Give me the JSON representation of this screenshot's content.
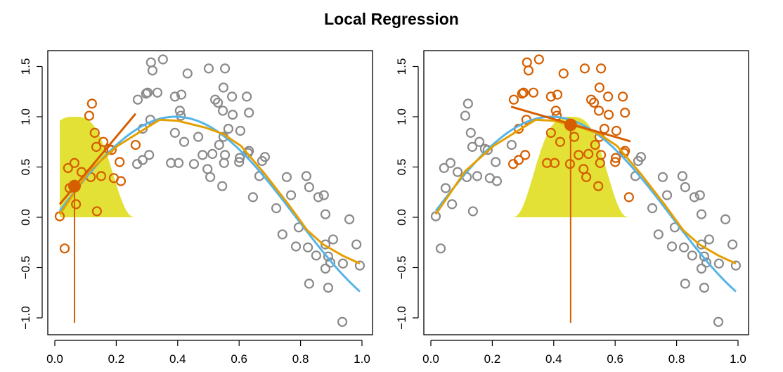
{
  "chart_data": {
    "type": "scatter",
    "title": "Local Regression",
    "xlim": [
      0,
      1
    ],
    "ylim": [
      -1.0,
      1.5
    ],
    "x_ticks": [
      "0.0",
      "0.2",
      "0.4",
      "0.6",
      "0.8",
      "1.0"
    ],
    "y_ticks": [
      "-1.0",
      "-0.5",
      "0.0",
      "0.5",
      "1.0",
      "1.5"
    ],
    "colors": {
      "points": "#8a8a8a",
      "highlight": "#D55E00",
      "true_fn": "#56B4E9",
      "loess": "#E69F00",
      "kernel": "#E3E135"
    },
    "true_function": "sin(4x)",
    "points": [
      [
        0.016,
        0.01
      ],
      [
        0.032,
        -0.31
      ],
      [
        0.121,
        1.13
      ],
      [
        0.112,
        1.01
      ],
      [
        0.13,
        0.84
      ],
      [
        0.158,
        0.75
      ],
      [
        0.135,
        0.7
      ],
      [
        0.185,
        0.67
      ],
      [
        0.176,
        0.68
      ],
      [
        0.211,
        0.55
      ],
      [
        0.064,
        0.54
      ],
      [
        0.043,
        0.49
      ],
      [
        0.087,
        0.45
      ],
      [
        0.117,
        0.4
      ],
      [
        0.151,
        0.41
      ],
      [
        0.192,
        0.39
      ],
      [
        0.215,
        0.36
      ],
      [
        0.048,
        0.29
      ],
      [
        0.069,
        0.13
      ],
      [
        0.137,
        0.06
      ],
      [
        0.263,
        0.72
      ],
      [
        0.313,
        1.54
      ],
      [
        0.318,
        1.46
      ],
      [
        0.352,
        1.57
      ],
      [
        0.432,
        1.43
      ],
      [
        0.501,
        1.48
      ],
      [
        0.554,
        1.48
      ],
      [
        0.27,
        1.17
      ],
      [
        0.297,
        1.23
      ],
      [
        0.302,
        1.24
      ],
      [
        0.334,
        1.24
      ],
      [
        0.391,
        1.2
      ],
      [
        0.412,
        1.22
      ],
      [
        0.407,
        1.06
      ],
      [
        0.41,
        1.01
      ],
      [
        0.522,
        1.17
      ],
      [
        0.531,
        1.14
      ],
      [
        0.549,
        1.29
      ],
      [
        0.577,
        1.2
      ],
      [
        0.625,
        1.2
      ],
      [
        0.547,
        1.06
      ],
      [
        0.579,
        1.02
      ],
      [
        0.632,
        1.04
      ],
      [
        0.565,
        0.88
      ],
      [
        0.604,
        0.86
      ],
      [
        0.286,
        0.88
      ],
      [
        0.311,
        0.97
      ],
      [
        0.391,
        0.84
      ],
      [
        0.421,
        0.75
      ],
      [
        0.467,
        0.8
      ],
      [
        0.549,
        0.8
      ],
      [
        0.535,
        0.72
      ],
      [
        0.307,
        0.62
      ],
      [
        0.286,
        0.57
      ],
      [
        0.268,
        0.53
      ],
      [
        0.378,
        0.54
      ],
      [
        0.403,
        0.54
      ],
      [
        0.453,
        0.53
      ],
      [
        0.481,
        0.62
      ],
      [
        0.513,
        0.63
      ],
      [
        0.554,
        0.62
      ],
      [
        0.551,
        0.54
      ],
      [
        0.497,
        0.48
      ],
      [
        0.506,
        0.4
      ],
      [
        0.602,
        0.59
      ],
      [
        0.6,
        0.55
      ],
      [
        0.632,
        0.66
      ],
      [
        0.629,
        0.64
      ],
      [
        0.684,
        0.6
      ],
      [
        0.675,
        0.56
      ],
      [
        0.545,
        0.31
      ],
      [
        0.666,
        0.41
      ],
      [
        0.645,
        0.2
      ],
      [
        0.755,
        0.4
      ],
      [
        0.819,
        0.41
      ],
      [
        0.828,
        0.3
      ],
      [
        0.769,
        0.22
      ],
      [
        0.858,
        0.2
      ],
      [
        0.876,
        0.22
      ],
      [
        0.721,
        0.09
      ],
      [
        0.881,
        0.03
      ],
      [
        0.959,
        -0.02
      ],
      [
        0.794,
        -0.1
      ],
      [
        0.741,
        -0.17
      ],
      [
        0.785,
        -0.29
      ],
      [
        0.824,
        -0.3
      ],
      [
        0.881,
        -0.27
      ],
      [
        0.906,
        -0.22
      ],
      [
        0.982,
        -0.27
      ],
      [
        0.851,
        -0.38
      ],
      [
        0.89,
        -0.39
      ],
      [
        0.897,
        -0.45
      ],
      [
        0.938,
        -0.46
      ],
      [
        0.993,
        -0.48
      ],
      [
        0.881,
        -0.51
      ],
      [
        0.828,
        -0.66
      ],
      [
        0.89,
        -0.7
      ],
      [
        0.936,
        -1.04
      ]
    ],
    "loess_fit": {
      "x": [
        0.016,
        0.112,
        0.204,
        0.341,
        0.4,
        0.492,
        0.547,
        0.606,
        0.684,
        0.76,
        0.822,
        0.874,
        0.936,
        0.993
      ],
      "y": [
        0.03,
        0.46,
        0.71,
        0.97,
        0.96,
        0.89,
        0.83,
        0.71,
        0.43,
        0.13,
        -0.13,
        -0.27,
        -0.38,
        -0.46
      ]
    },
    "panels": [
      {
        "target": [
          0.064,
          0.31
        ],
        "window": [
          0.0,
          0.263
        ],
        "kernel_range": [
          0.016,
          0.264
        ],
        "local_line": [
          [
            0.016,
            0.13
          ],
          [
            0.263,
            1.03
          ]
        ]
      },
      {
        "target": [
          0.455,
          0.92
        ],
        "window": [
          0.265,
          0.646
        ],
        "kernel_range": [
          0.26,
          0.655
        ],
        "local_line": [
          [
            0.261,
            1.1
          ],
          [
            0.65,
            0.755
          ]
        ]
      }
    ]
  }
}
